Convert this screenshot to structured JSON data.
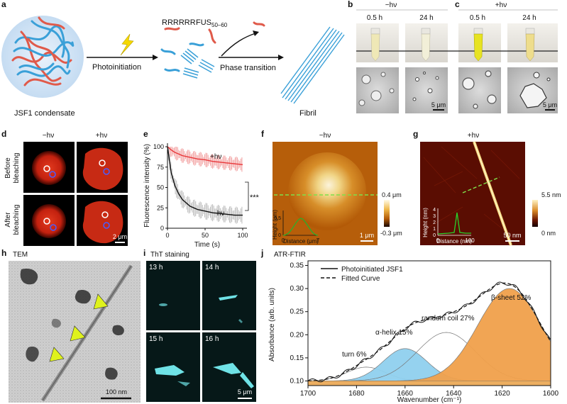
{
  "panel_labels": {
    "a": "a",
    "b": "b",
    "c": "c",
    "d": "d",
    "e": "e",
    "f": "f",
    "g": "g",
    "h": "h",
    "i": "i",
    "j": "j"
  },
  "panel_a": {
    "peptide1": "RRRRRR",
    "peptide2_main": "FUS",
    "peptide2_sub": "50–60",
    "step1": "Photoinitiation",
    "step2": "Phase transition",
    "condensate_label": "JSF1 condensate",
    "fibril_label": "Fibril"
  },
  "panel_b": {
    "condition": "−hν",
    "time1": "0.5 h",
    "time2": "24 h",
    "scale": "5 μm"
  },
  "panel_c": {
    "condition": "+hν",
    "time1": "0.5 h",
    "time2": "24 h",
    "scale": "5 μm"
  },
  "panel_d": {
    "col1": "−hν",
    "col2": "+hν",
    "row1_line1": "Before",
    "row1_line2": "bleaching",
    "row2_line1": "After",
    "row2_line2": "bleaching",
    "scale": "2 μm"
  },
  "panel_e": {
    "chart_data": {
      "type": "line",
      "xlabel": "Time (s)",
      "ylabel": "Fluorescence intensity (%)",
      "xlim": [
        0,
        100
      ],
      "ylim": [
        0,
        100
      ],
      "xticks": [
        "0",
        "50",
        "100"
      ],
      "yticks": [
        "0",
        "25",
        "50",
        "75",
        "100"
      ],
      "significance": "***",
      "series": [
        {
          "name": "+hν",
          "color": "#e8383b",
          "x": [
            0,
            5,
            10,
            20,
            30,
            40,
            50,
            60,
            70,
            80,
            90,
            100
          ],
          "y": [
            100,
            96,
            93,
            89,
            87,
            85,
            84,
            82,
            81,
            80,
            79,
            78
          ]
        },
        {
          "name": "−hν",
          "color": "#111111",
          "x": [
            0,
            5,
            10,
            15,
            20,
            30,
            40,
            50,
            60,
            70,
            80,
            90,
            100
          ],
          "y": [
            100,
            68,
            52,
            42,
            35,
            27,
            23,
            21,
            19,
            18,
            17,
            16,
            16
          ]
        }
      ]
    }
  },
  "panel_f": {
    "condition": "−hν",
    "inset_xlabel": "Distance (μm)",
    "inset_ylabel": "Height (μm)",
    "inset_xticks": [
      "0",
      "7"
    ],
    "inset_yticks": [
      "0",
      "0.5"
    ],
    "scale": "1 μm",
    "cbar_top": "0.4 μm",
    "cbar_bottom": "-0.3 μm"
  },
  "panel_g": {
    "condition": "+hν",
    "inset_xlabel": "Distance (nm)",
    "inset_ylabel": "Height (nm)",
    "inset_xticks": [
      "0",
      "160"
    ],
    "inset_yticks": [
      "0",
      "1",
      "2",
      "3",
      "4"
    ],
    "scale": "50 nm",
    "cbar_top": "5.5 nm",
    "cbar_bottom": "0 nm"
  },
  "panel_h": {
    "title": "TEM",
    "scale": "100 nm"
  },
  "panel_i": {
    "title": "ThT staining",
    "t1": "13 h",
    "t2": "14 h",
    "t3": "15 h",
    "t4": "16 h",
    "scale": "5 μm"
  },
  "panel_j": {
    "title": "ATR-FTIR",
    "chart_data": {
      "type": "area",
      "xlabel": "Wavenumber (cm⁻¹)",
      "ylabel": "Absorbance (arb. units)",
      "xlim": [
        1700,
        1600
      ],
      "ylim": [
        0.09,
        0.36
      ],
      "xticks": [
        "1700",
        "1680",
        "1660",
        "1640",
        "1620",
        "1600"
      ],
      "yticks": [
        "0.10",
        "0.15",
        "0.20",
        "0.25",
        "0.30",
        "0.35"
      ],
      "legend": [
        "Photoinitiated JSF1",
        "Fitted Curve"
      ],
      "components": [
        {
          "name": "turn 6%",
          "center": 1676,
          "height": 0.03,
          "color": "#ffffff"
        },
        {
          "name": "α-helix 15%",
          "center": 1660,
          "height": 0.07,
          "color": "#8fd0ee"
        },
        {
          "name": "random coil 27%",
          "center": 1643,
          "height": 0.105,
          "color": "#ffffff"
        },
        {
          "name": "β-sheet 52%",
          "center": 1617,
          "height": 0.2,
          "color": "#f0a04b"
        }
      ]
    }
  }
}
